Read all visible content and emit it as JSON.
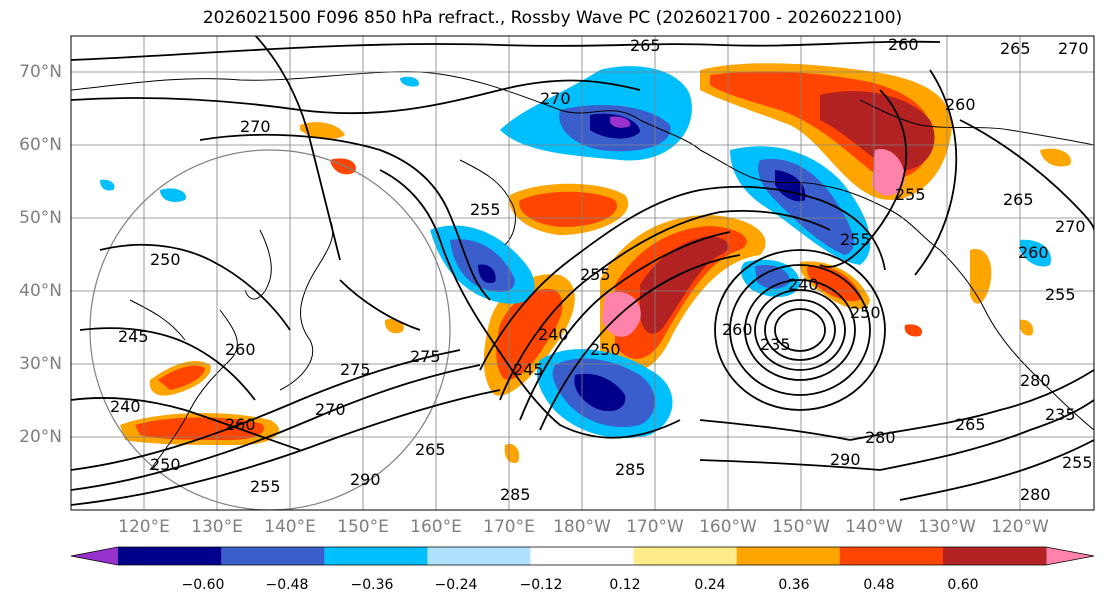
{
  "title": "2026021500 F096 850 hPa refract., Rossby Wave PC (2026021700 - 2026022100)",
  "lat_labels": [
    "70°N",
    "60°N",
    "50°N",
    "40°N",
    "30°N",
    "20°N"
  ],
  "lon_labels": [
    "120°E",
    "130°E",
    "140°E",
    "150°E",
    "160°E",
    "170°E",
    "180°W",
    "170°W",
    "160°W",
    "150°W",
    "140°W",
    "130°W",
    "120°W"
  ],
  "colorbar": {
    "colors": [
      "#9932cc",
      "#00008b",
      "#3a5fcd",
      "#00bfff",
      "#b0e2ff",
      "#ffffff",
      "#ffec8b",
      "#ffa500",
      "#ff4500",
      "#b22222",
      "#ff82ab"
    ],
    "tick_labels": [
      "−0.60",
      "−0.48",
      "−0.36",
      "−0.24",
      "−0.12",
      "0.12",
      "0.24",
      "0.36",
      "0.48",
      "0.60"
    ]
  },
  "contour_labels": [
    "265",
    "260",
    "265",
    "270",
    "270",
    "260",
    "270",
    "255",
    "255",
    "255",
    "265",
    "270",
    "250",
    "260",
    "255",
    "240",
    "250",
    "250",
    "260",
    "240",
    "255",
    "245",
    "275",
    "275",
    "260",
    "235",
    "245",
    "260",
    "280",
    "290",
    "285",
    "270",
    "265",
    "255",
    "240",
    "280",
    "265",
    "250",
    "290",
    "285",
    "280",
    "235",
    "255"
  ]
}
